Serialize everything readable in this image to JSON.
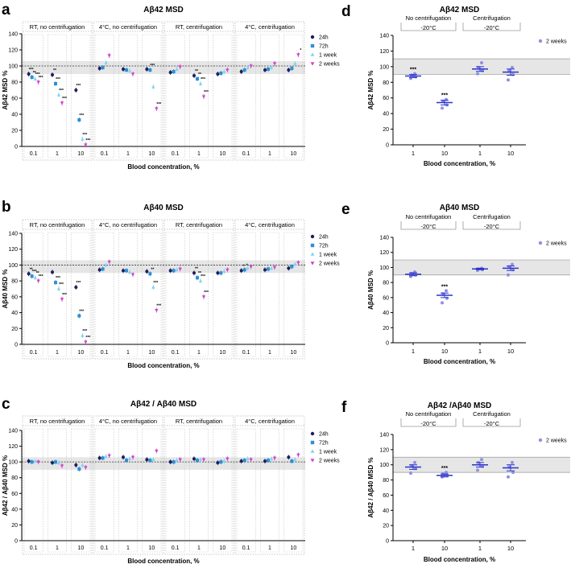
{
  "panel_letters": [
    "a",
    "b",
    "c",
    "d",
    "e",
    "f"
  ],
  "colors": {
    "h24": "#1b1f5c",
    "h72": "#2e8fd6",
    "w1": "#7fd4ec",
    "w2": "#d23fcf",
    "d_dots": "#8f8fe6",
    "d_mean": "#2b35c9",
    "band": "#e6e6e6"
  },
  "legend_left": [
    {
      "label": "24h",
      "key": "h24",
      "marker": "circle"
    },
    {
      "label": "72h",
      "key": "h72",
      "marker": "square"
    },
    {
      "label": "1 week",
      "key": "w1",
      "marker": "triangle-up"
    },
    {
      "label": "2 weeks",
      "key": "w2",
      "marker": "triangle-down"
    }
  ],
  "legend_right": {
    "label": "2 weeks"
  },
  "group_headers": [
    "RT, no centrifugation",
    "4°C, no centrifugation",
    "RT, centrifugation",
    "4°C, centrifugation"
  ],
  "right_group_headers": [
    "No centrifugation",
    "Centrifugation"
  ],
  "right_subheaders": [
    "-20°C",
    "-20°C"
  ],
  "conc_labels": [
    "0.1",
    "1",
    "10"
  ],
  "right_conc_labels": [
    "1",
    "10",
    "1",
    "10"
  ],
  "xlabel": "Blood concentration, %",
  "chart_data": [
    {
      "type": "scatter",
      "panel": "a",
      "title": "Aβ42 MSD",
      "ylabel": "Aβ42 MSD %",
      "ylim": [
        0,
        140
      ],
      "yticks": [
        0,
        20,
        40,
        60,
        80,
        100,
        120,
        140
      ],
      "band": [
        90,
        106
      ],
      "reference_line": 100,
      "series": [
        {
          "name": "24h",
          "values": [
            90,
            89,
            70,
            97,
            96,
            96,
            92,
            88,
            90,
            93,
            95,
            95
          ]
        },
        {
          "name": "72h",
          "values": [
            86,
            78,
            33,
            98,
            95,
            95,
            93,
            84,
            91,
            95,
            96,
            97
          ]
        },
        {
          "name": "1 week",
          "values": [
            84,
            64,
            9,
            104,
            94,
            74,
            96,
            78,
            93,
            98,
            98,
            103
          ]
        },
        {
          "name": "2 weeks",
          "values": [
            80,
            54,
            2,
            113,
            90,
            47,
            99,
            62,
            95,
            100,
            103,
            114
          ]
        }
      ],
      "significance": [
        [
          "***",
          "**",
          "***",
          "",
          "",
          "",
          "",
          "**",
          "",
          "",
          "",
          ""
        ],
        [
          "**",
          "***",
          "***",
          "",
          "",
          "***",
          "",
          "**",
          "",
          "",
          "",
          ""
        ],
        [
          "***",
          "***",
          "***",
          "",
          "",
          "",
          "",
          "***",
          "",
          "",
          "",
          ""
        ],
        [
          "***",
          "***",
          "***",
          "",
          "",
          "***",
          "",
          "***",
          "",
          "",
          "",
          "*"
        ]
      ]
    },
    {
      "type": "scatter",
      "panel": "b",
      "title": "Aβ40 MSD",
      "ylabel": "Aβ40 MSD %",
      "ylim": [
        0,
        140
      ],
      "yticks": [
        0,
        20,
        40,
        60,
        80,
        100,
        120,
        140
      ],
      "band": [
        90,
        106
      ],
      "reference_line": 100,
      "series": [
        {
          "name": "24h",
          "values": [
            89,
            91,
            72,
            94,
            93,
            92,
            93,
            90,
            90,
            93,
            94,
            96
          ]
        },
        {
          "name": "72h",
          "values": [
            86,
            78,
            36,
            95,
            93,
            89,
            93,
            84,
            90,
            94,
            95,
            98
          ]
        },
        {
          "name": "1 week",
          "values": [
            84,
            70,
            11,
            100,
            91,
            72,
            94,
            80,
            92,
            96,
            96,
            101
          ]
        },
        {
          "name": "2 weeks",
          "values": [
            80,
            57,
            3,
            104,
            88,
            43,
            95,
            60,
            94,
            98,
            97,
            103
          ]
        }
      ],
      "significance": [
        [
          "**",
          "",
          "***",
          "",
          "",
          "",
          "",
          "**",
          "",
          "*",
          "",
          ""
        ],
        [
          "***",
          "***",
          "***",
          "",
          "",
          "**",
          "",
          "**",
          "",
          "*",
          "",
          ""
        ],
        [
          "**",
          "***",
          "***",
          "",
          "",
          "***",
          "",
          "***",
          "",
          "",
          "",
          ""
        ],
        [
          "***",
          "***",
          "***",
          "",
          "",
          "***",
          "",
          "***",
          "",
          "",
          "",
          ""
        ]
      ]
    },
    {
      "type": "scatter",
      "panel": "c",
      "title": "Aβ42 / Aβ40 MSD",
      "ylabel": "Aβ42 / Aβ40 MSD %",
      "ylim": [
        0,
        140
      ],
      "yticks": [
        0,
        20,
        40,
        60,
        80,
        100,
        120,
        140
      ],
      "band": [
        90,
        106
      ],
      "reference_line": 100,
      "series": [
        {
          "name": "24h",
          "values": [
            101,
            99,
            96,
            105,
            106,
            103,
            100,
            104,
            99,
            101,
            101,
            106
          ]
        },
        {
          "name": "72h",
          "values": [
            100,
            100,
            91,
            105,
            102,
            102,
            100,
            102,
            100,
            102,
            102,
            101
          ]
        },
        {
          "name": "1 week",
          "values": [
            101,
            99,
            96,
            107,
            104,
            103,
            102,
            103,
            101,
            104,
            104,
            103
          ]
        },
        {
          "name": "2 weeks",
          "values": [
            100,
            95,
            93,
            108,
            106,
            114,
            103,
            103,
            104,
            103,
            105,
            109
          ]
        }
      ]
    },
    {
      "type": "scatter",
      "panel": "d",
      "title": "Aβ42 MSD",
      "ylabel": "Aβ42 MSD %",
      "ylim": [
        0,
        140
      ],
      "yticks": [
        0,
        20,
        40,
        60,
        80,
        100,
        120,
        140
      ],
      "band": [
        90,
        110
      ],
      "categories": [
        "1",
        "10",
        "1",
        "10"
      ],
      "groups": [
        {
          "mean": 88,
          "sem": 2,
          "points": [
            85,
            87,
            89,
            91
          ],
          "sig": "***"
        },
        {
          "mean": 54,
          "sem": 3,
          "points": [
            47,
            51,
            56,
            58
          ],
          "sig": "***"
        },
        {
          "mean": 97,
          "sem": 3,
          "points": [
            91,
            95,
            99,
            105
          ],
          "sig": ""
        },
        {
          "mean": 93,
          "sem": 4,
          "points": [
            83,
            90,
            95,
            99
          ],
          "sig": ""
        }
      ]
    },
    {
      "type": "scatter",
      "panel": "e",
      "title": "Aβ40 MSD",
      "ylabel": "Aβ40 MSD %",
      "ylim": [
        0,
        140
      ],
      "yticks": [
        0,
        20,
        40,
        60,
        80,
        100,
        120,
        140
      ],
      "band": [
        90,
        110
      ],
      "categories": [
        "1",
        "10",
        "1",
        "10"
      ],
      "groups": [
        {
          "mean": 91,
          "sem": 2,
          "points": [
            88,
            90,
            92,
            94
          ],
          "sig": ""
        },
        {
          "mean": 63,
          "sem": 3,
          "points": [
            53,
            59,
            65,
            69
          ],
          "sig": "***"
        },
        {
          "mean": 98,
          "sem": 1,
          "points": [
            96,
            97,
            98,
            99
          ],
          "sig": ""
        },
        {
          "mean": 99,
          "sem": 3,
          "points": [
            90,
            97,
            101,
            104
          ],
          "sig": ""
        }
      ]
    },
    {
      "type": "scatter",
      "panel": "f",
      "title": "Aβ42 /Aβ40 MSD",
      "ylabel": "Aβ42 / Aβ40 MSD %",
      "ylim": [
        0,
        140
      ],
      "yticks": [
        0,
        20,
        40,
        60,
        80,
        100,
        120,
        140
      ],
      "band": [
        90,
        110
      ],
      "categories": [
        "1",
        "10",
        "1",
        "10"
      ],
      "groups": [
        {
          "mean": 97,
          "sem": 3,
          "points": [
            89,
            95,
            99,
            103
          ],
          "sig": ""
        },
        {
          "mean": 86,
          "sem": 2,
          "points": [
            84,
            86,
            88,
            90
          ],
          "sig": "***"
        },
        {
          "mean": 100,
          "sem": 3,
          "points": [
            93,
            98,
            103,
            107
          ],
          "sig": ""
        },
        {
          "mean": 96,
          "sem": 4,
          "points": [
            84,
            90,
            97,
            103
          ],
          "sig": ""
        }
      ]
    }
  ]
}
